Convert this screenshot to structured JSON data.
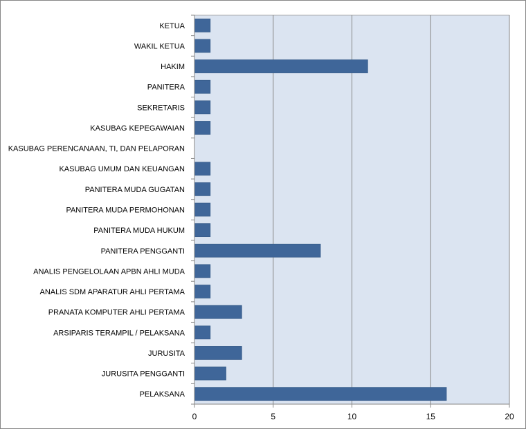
{
  "chart_data": {
    "type": "bar",
    "orientation": "horizontal",
    "categories": [
      "KETUA",
      "WAKIL KETUA",
      "HAKIM",
      "PANITERA",
      "SEKRETARIS",
      "KASUBAG KEPEGAWAIAN",
      "KASUBAG PERENCANAAN, TI, DAN PELAPORAN",
      "KASUBAG UMUM DAN KEUANGAN",
      "PANITERA MUDA GUGATAN",
      "PANITERA MUDA PERMOHONAN",
      "PANITERA MUDA HUKUM",
      "PANITERA PENGGANTI",
      "ANALIS PENGELOLAAN APBN AHLI MUDA",
      "ANALIS SDM APARATUR AHLI PERTAMA",
      "PRANATA KOMPUTER AHLI PERTAMA",
      "ARSIPARIS TERAMPIL / PELAKSANA",
      "JURUSITA",
      "JURUSITA PENGGANTI",
      "PELAKSANA"
    ],
    "values": [
      1,
      1,
      11,
      1,
      1,
      1,
      0,
      1,
      1,
      1,
      1,
      8,
      1,
      1,
      3,
      1,
      3,
      2,
      16
    ],
    "xlim": [
      0,
      20
    ],
    "xticks": [
      "0",
      "5",
      "10",
      "15",
      "20"
    ],
    "xtick_values": [
      0,
      5,
      10,
      15,
      20
    ],
    "title": "",
    "xlabel": "",
    "ylabel": "",
    "grid": "vertical major gridlines",
    "legend": "none",
    "colors": {
      "bar": "#385d8a",
      "bar_fill": "#3f6699",
      "plot_background": "#dbe4f1",
      "gridline": "#868686",
      "frame": "#868686"
    }
  }
}
